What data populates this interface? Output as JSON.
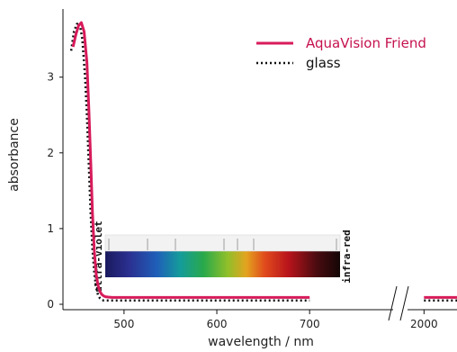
{
  "chart_data": {
    "type": "line",
    "title": "",
    "xlabel": "wavelength / nm",
    "ylabel": "absorbance",
    "x_ticks": [
      "500",
      "600",
      "700",
      "2000"
    ],
    "y_ticks": [
      "0",
      "1",
      "2",
      "3"
    ],
    "xlim": [
      440,
      2100
    ],
    "x_break": [
      790,
      1950
    ],
    "ylim": [
      0,
      3.9
    ],
    "grid": false,
    "legend_position": "top-right",
    "series": [
      {
        "name": "AquaVision Friend",
        "color": "#d81b5a",
        "style": "solid",
        "x": [
          445,
          448,
          451,
          454,
          457,
          460,
          462,
          464,
          466,
          468,
          470,
          472,
          474,
          476,
          478,
          480,
          483,
          487,
          492,
          500,
          520,
          600,
          700,
          800,
          2000,
          2100
        ],
        "y": [
          3.4,
          3.56,
          3.68,
          3.72,
          3.6,
          3.2,
          2.6,
          1.9,
          1.2,
          0.7,
          0.4,
          0.25,
          0.17,
          0.13,
          0.11,
          0.1,
          0.095,
          0.09,
          0.09,
          0.09,
          0.09,
          0.09,
          0.09,
          0.09,
          0.09,
          0.09
        ]
      },
      {
        "name": "glass",
        "color": "#111111",
        "style": "dotted",
        "x": [
          443,
          446,
          449,
          452,
          455,
          458,
          460,
          462,
          464,
          466,
          468,
          470,
          472,
          474,
          476,
          478,
          480,
          484,
          490,
          500,
          520,
          600,
          700,
          800,
          2000,
          2100
        ],
        "y": [
          3.35,
          3.6,
          3.7,
          3.72,
          3.5,
          3.0,
          2.5,
          1.85,
          1.2,
          0.72,
          0.4,
          0.22,
          0.12,
          0.08,
          0.06,
          0.05,
          0.05,
          0.05,
          0.05,
          0.05,
          0.05,
          0.05,
          0.05,
          0.05,
          0.05,
          0.05
        ]
      }
    ],
    "annotations": {
      "left_label": "ultra-violet",
      "right_label": "infra-red"
    }
  }
}
